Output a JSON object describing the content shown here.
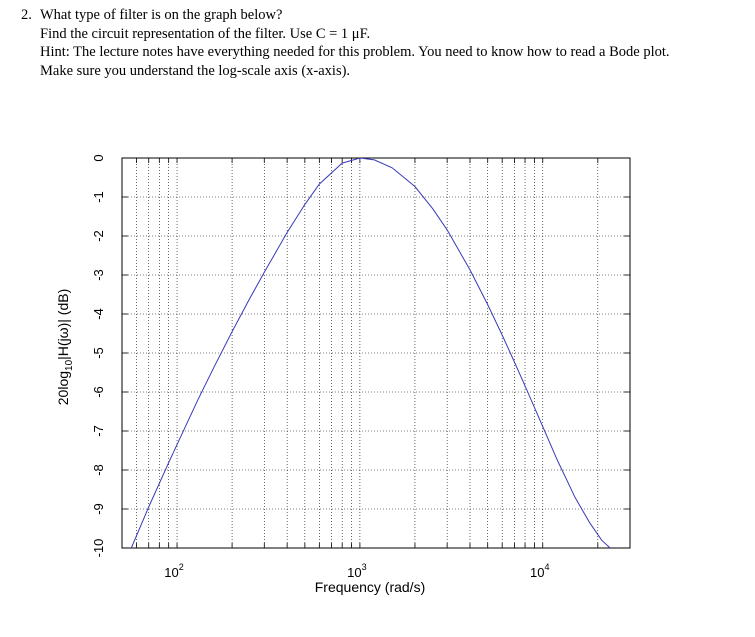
{
  "problem": {
    "number": "2.",
    "question": "What type of filter is on the graph below?",
    "instruction_prefix": "Find the circuit representation of the filter.  Use C = 1 ",
    "instruction_unit": "μF.",
    "hint": "Hint: The lecture notes have everything needed for this problem.  You need to know how to read a Bode plot.",
    "reminder": "Make sure you understand the log-scale axis (x-axis)."
  },
  "chart_data": {
    "type": "line",
    "title": "",
    "xlabel": "Frequency (rad/s)",
    "ylabel_parts": {
      "prefix": "20log",
      "subscript": "10",
      "suffix": "|H(jω)| (dB)"
    },
    "x_scale": "log",
    "xlim": [
      50,
      30000
    ],
    "ylim": [
      -10,
      0
    ],
    "x_ticks": [
      {
        "value": 100,
        "base": "10",
        "exp": "2"
      },
      {
        "value": 1000,
        "base": "10",
        "exp": "3"
      },
      {
        "value": 10000,
        "base": "10",
        "exp": "4"
      }
    ],
    "y_ticks": [
      "0",
      "-1",
      "-2",
      "-3",
      "-4",
      "-5",
      "-6",
      "-7",
      "-8",
      "-9",
      "-10"
    ],
    "grid": true,
    "series": [
      {
        "color": "#3a3ab8",
        "x": [
          56.2,
          70,
          90,
          110,
          130,
          160,
          200,
          250,
          300,
          400,
          500,
          600,
          800,
          1000,
          1200,
          1500,
          2000,
          2500,
          3000,
          4000,
          5000,
          6000,
          7000,
          8000,
          10000,
          12000,
          15000,
          18000,
          21000,
          24000,
          25800
        ],
        "y": [
          -10.0,
          -8.95,
          -7.81,
          -6.93,
          -6.2,
          -5.34,
          -4.45,
          -3.6,
          -2.93,
          -1.91,
          -1.19,
          -0.67,
          -0.13,
          0.0,
          -0.05,
          -0.25,
          -0.73,
          -1.3,
          -1.84,
          -2.87,
          -3.76,
          -4.54,
          -5.23,
          -5.84,
          -6.89,
          -7.74,
          -8.7,
          -9.34,
          -9.8,
          -10.05,
          -10.0
        ]
      }
    ]
  }
}
